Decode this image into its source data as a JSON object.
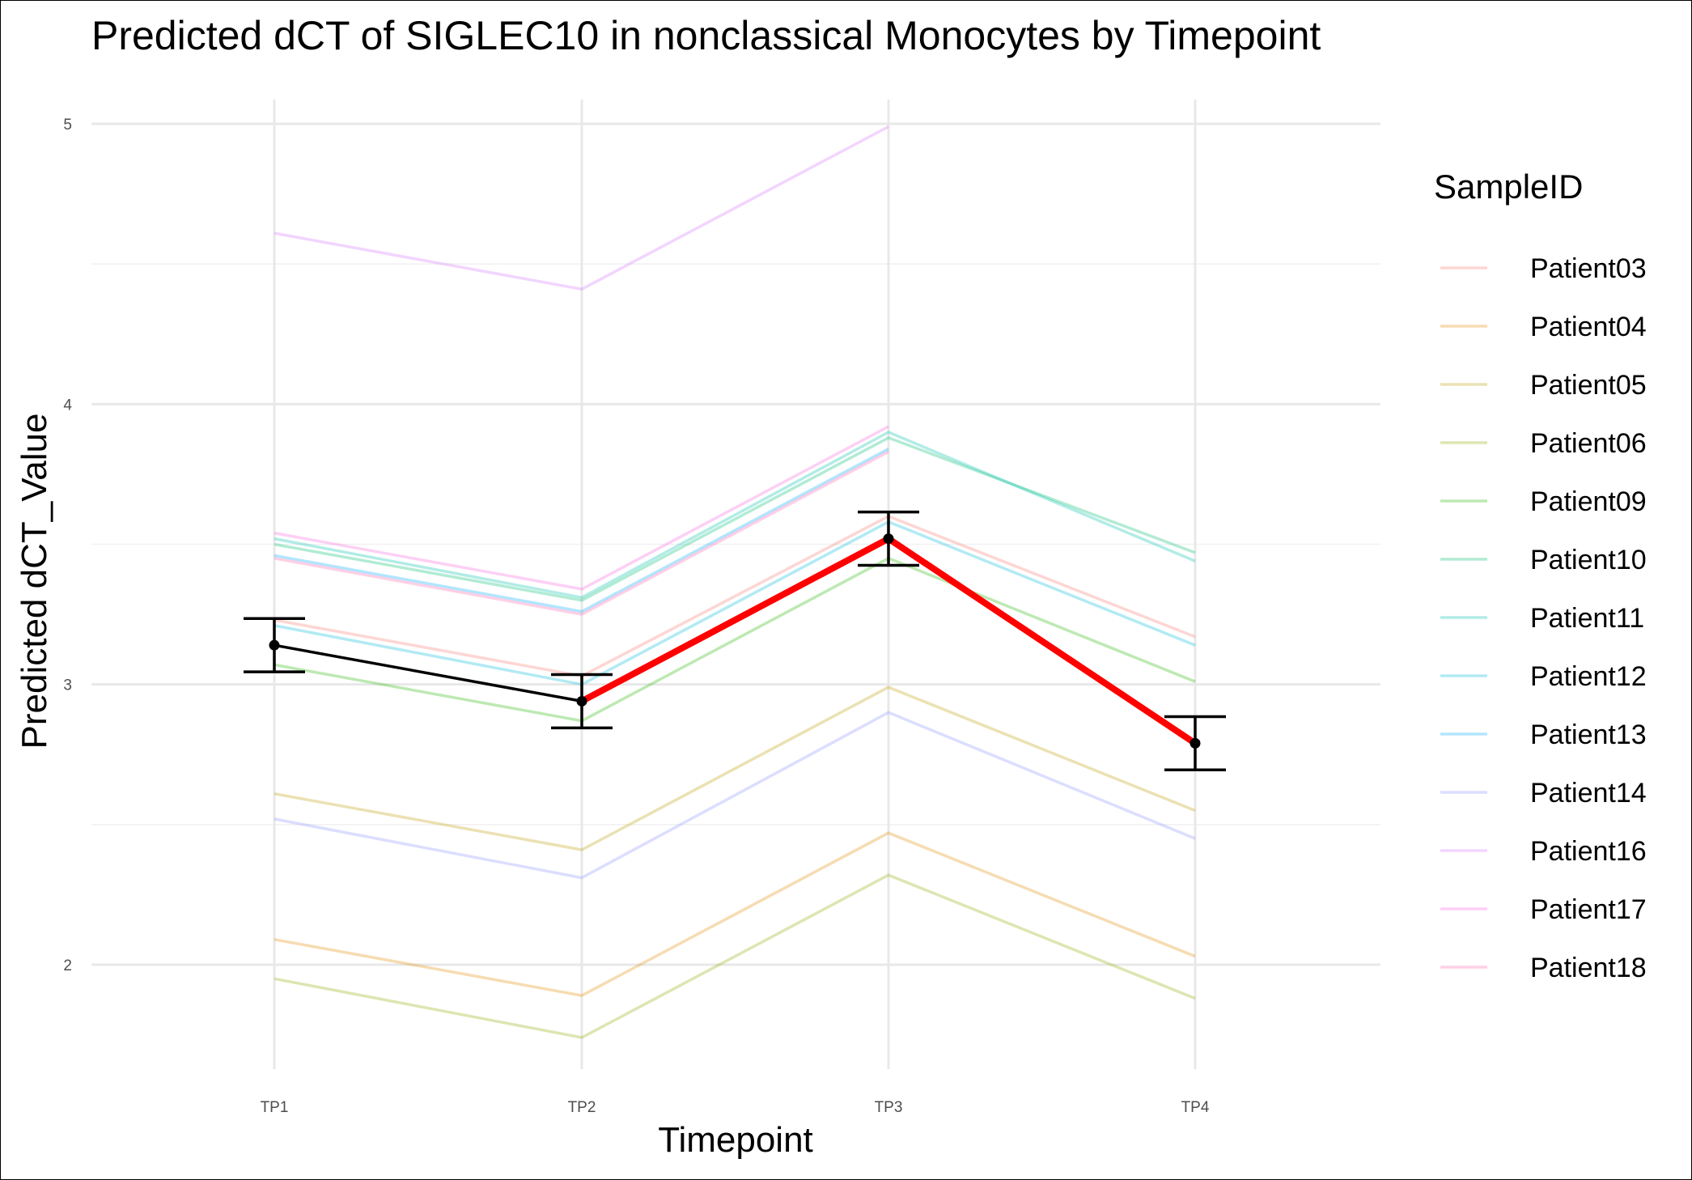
{
  "chart_data": {
    "type": "line",
    "title": "Predicted dCT of  SIGLEC10 in  nonclassical  Monocytes by Timepoint",
    "xlabel": "Timepoint",
    "ylabel": "Predicted dCT_Value",
    "categories": [
      "TP1",
      "TP2",
      "TP3",
      "TP4"
    ],
    "y_ticks": [
      "2",
      "3",
      "4",
      "5"
    ],
    "ylim": [
      1.57,
      5.2
    ],
    "grid": true,
    "legend": {
      "title": "SampleID",
      "position": "right"
    },
    "series": [
      {
        "name": "Patient03",
        "color": "#F8766D",
        "values": [
          3.23,
          3.03,
          3.6,
          3.17
        ]
      },
      {
        "name": "Patient04",
        "color": "#E18A00",
        "values": [
          2.09,
          1.89,
          2.47,
          2.03
        ]
      },
      {
        "name": "Patient05",
        "color": "#BE9C00",
        "values": [
          2.61,
          2.41,
          2.99,
          2.55
        ]
      },
      {
        "name": "Patient06",
        "color": "#8CAB00",
        "values": [
          1.95,
          1.74,
          2.32,
          1.88
        ]
      },
      {
        "name": "Patient09",
        "color": "#24B700",
        "values": [
          3.07,
          2.87,
          3.45,
          3.01
        ]
      },
      {
        "name": "Patient10",
        "color": "#00BE70",
        "values": [
          3.5,
          3.3,
          3.88,
          3.47
        ]
      },
      {
        "name": "Patient11",
        "color": "#00C1AB",
        "values": [
          3.52,
          3.31,
          3.9,
          3.44
        ]
      },
      {
        "name": "Patient12",
        "color": "#00BBDA",
        "values": [
          3.21,
          3.0,
          3.58,
          3.14
        ]
      },
      {
        "name": "Patient13",
        "color": "#00ACFC",
        "values": [
          3.46,
          3.26,
          3.84,
          null
        ]
      },
      {
        "name": "Patient14",
        "color": "#8B93FF",
        "values": [
          2.52,
          2.31,
          2.9,
          2.45
        ]
      },
      {
        "name": "Patient16",
        "color": "#D575FE",
        "values": [
          4.61,
          4.41,
          4.99,
          null
        ]
      },
      {
        "name": "Patient17",
        "color": "#F962DD",
        "values": [
          3.54,
          3.34,
          3.92,
          null
        ]
      },
      {
        "name": "Patient18",
        "color": "#FF65AC",
        "values": [
          3.45,
          3.25,
          3.83,
          null
        ]
      }
    ],
    "mean": {
      "values": [
        3.14,
        2.94,
        3.52,
        2.79
      ],
      "error": [
        0.095,
        0.095,
        0.095,
        0.095
      ],
      "color": "#000000",
      "highlight_color": "#FF0000",
      "highlight_from_index": 1
    }
  }
}
